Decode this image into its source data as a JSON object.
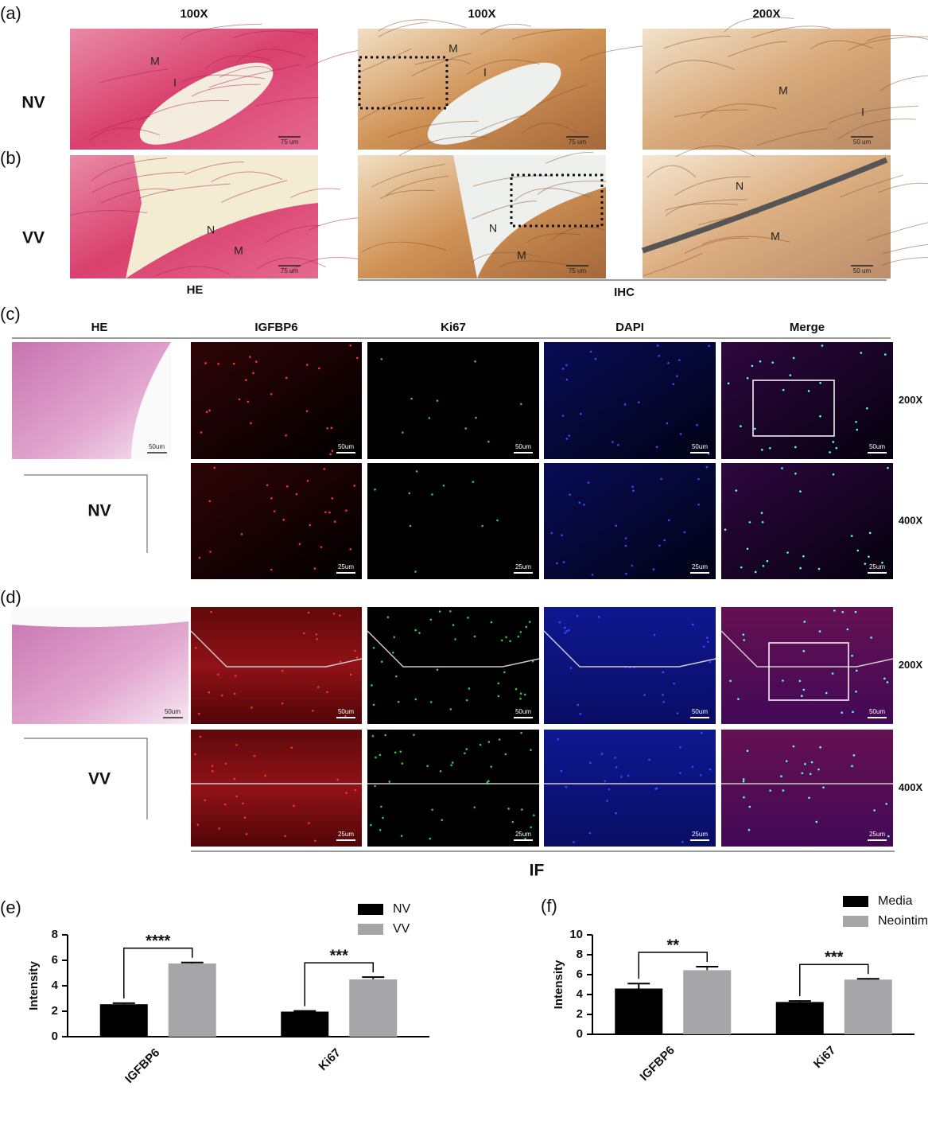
{
  "figure": {
    "panel_labels": [
      "(a)",
      "(b)",
      "(c)",
      "(d)",
      "(e)",
      "(f)"
    ],
    "ab": {
      "column_headers": [
        "100X",
        "100X",
        "200X"
      ],
      "row_labels": [
        "NV",
        "VV"
      ],
      "method_labels": [
        "HE",
        "IHC"
      ],
      "images": [
        [
          {
            "scale": "75 um",
            "annotations": [
              "M",
              "I"
            ]
          },
          {
            "scale": "75 um",
            "annotations": [
              "M",
              "I"
            ]
          },
          {
            "scale": "50 um",
            "annotations": [
              "M",
              "I"
            ]
          }
        ],
        [
          {
            "scale": "75 um",
            "annotations": [
              "N",
              "M"
            ]
          },
          {
            "scale": "75 um",
            "annotations": [
              "N",
              "M"
            ]
          },
          {
            "scale": "50 um",
            "annotations": [
              "N",
              "M"
            ]
          }
        ]
      ]
    },
    "cd": {
      "column_headers": [
        "HE",
        "IGFBP6",
        "Ki67",
        "DAPI",
        "Merge"
      ],
      "row_labels": [
        "NV",
        "VV"
      ],
      "magnifications": [
        "200X",
        "400X"
      ],
      "scale_bars": [
        "50um",
        "25um"
      ],
      "method_label": "IF"
    }
  },
  "chart_data": [
    {
      "type": "bar",
      "y_label": "Intensity",
      "categories": [
        "IGFBP6",
        "Ki67"
      ],
      "ylim": [
        0,
        8
      ],
      "yticks": [
        0,
        2,
        4,
        6,
        8
      ],
      "grid": false,
      "legend": "top-right",
      "series": [
        {
          "name": "NV",
          "color": "#000000",
          "values": [
            2.55,
            1.97
          ],
          "errors": [
            0.08,
            0.05
          ]
        },
        {
          "name": "VV",
          "color": "#a6a6a8",
          "values": [
            5.75,
            4.5
          ],
          "errors": [
            0.08,
            0.18
          ]
        }
      ],
      "significance": [
        "****",
        "***"
      ]
    },
    {
      "type": "bar",
      "y_label": "Intensity",
      "categories": [
        "IGFBP6",
        "Ki67"
      ],
      "ylim": [
        0,
        10
      ],
      "yticks": [
        0,
        2,
        4,
        6,
        8,
        10
      ],
      "grid": false,
      "legend": "top-right",
      "series": [
        {
          "name": "Media",
          "color": "#000000",
          "values": [
            4.6,
            3.25
          ],
          "errors": [
            0.5,
            0.1
          ]
        },
        {
          "name": "Neointima",
          "color": "#a6a6a8",
          "values": [
            6.45,
            5.5
          ],
          "errors": [
            0.35,
            0.08
          ]
        }
      ],
      "significance": [
        "**",
        "***"
      ]
    }
  ]
}
